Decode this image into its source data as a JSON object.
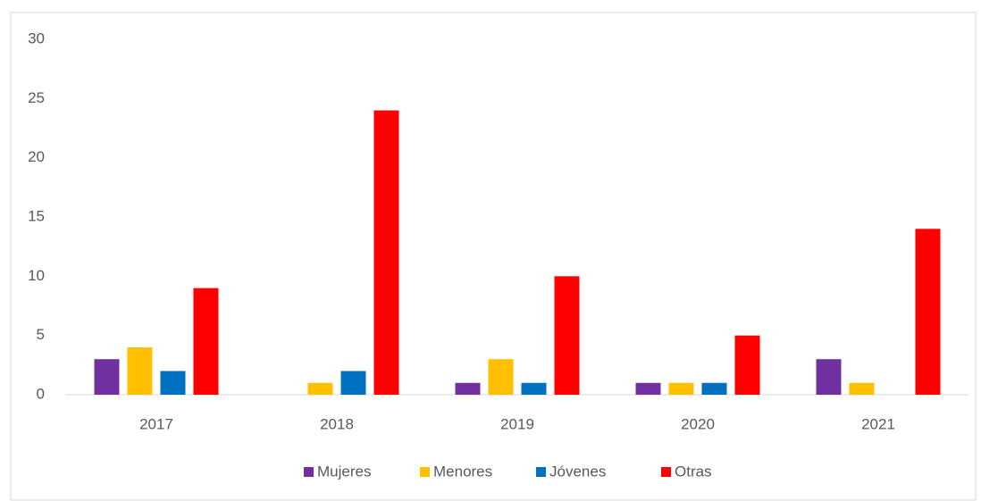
{
  "chart_data": {
    "type": "bar",
    "categories": [
      "2017",
      "2018",
      "2019",
      "2020",
      "2021"
    ],
    "series": [
      {
        "name": "Mujeres",
        "color": "#7030a0",
        "values": [
          3,
          0,
          1,
          1,
          3
        ]
      },
      {
        "name": "Menores",
        "color": "#ffc000",
        "values": [
          4,
          1,
          3,
          1,
          1
        ]
      },
      {
        "name": "Jóvenes",
        "color": "#0070c0",
        "values": [
          2,
          2,
          1,
          1,
          0
        ]
      },
      {
        "name": "Otras",
        "color": "#ff0000",
        "values": [
          9,
          24,
          10,
          5,
          14
        ]
      }
    ],
    "ylim": [
      0,
      30
    ],
    "yticks": [
      0,
      5,
      10,
      15,
      20,
      25,
      30
    ],
    "grid": false,
    "legend": "bottom"
  }
}
